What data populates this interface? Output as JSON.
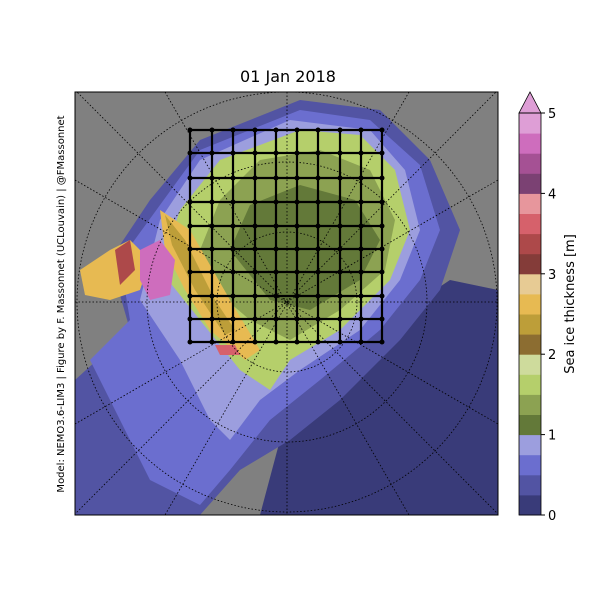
{
  "title": "01 Jan 2018",
  "credit": "Model: NEMO3.6-LIM3 | Figure by F. Massonnet (UCLouvain) | @FMassonnet",
  "colorbar": {
    "label": "Sea ice thickness [m]",
    "lim": [
      0,
      5
    ],
    "ticks": [
      0,
      1,
      2,
      3,
      4,
      5
    ],
    "colors": [
      "#393b79",
      "#5254a3",
      "#6b6ecf",
      "#9c9ede",
      "#637939",
      "#8ca252",
      "#b5cf6b",
      "#cedb9c",
      "#8c6d31",
      "#bd9e39",
      "#e7ba52",
      "#e7cb94",
      "#843c39",
      "#ad494a",
      "#d6616b",
      "#e7969c",
      "#7b4173",
      "#a55194",
      "#ce6dbd",
      "#de9ed6"
    ],
    "extend_color": "#de9ed6"
  }
}
